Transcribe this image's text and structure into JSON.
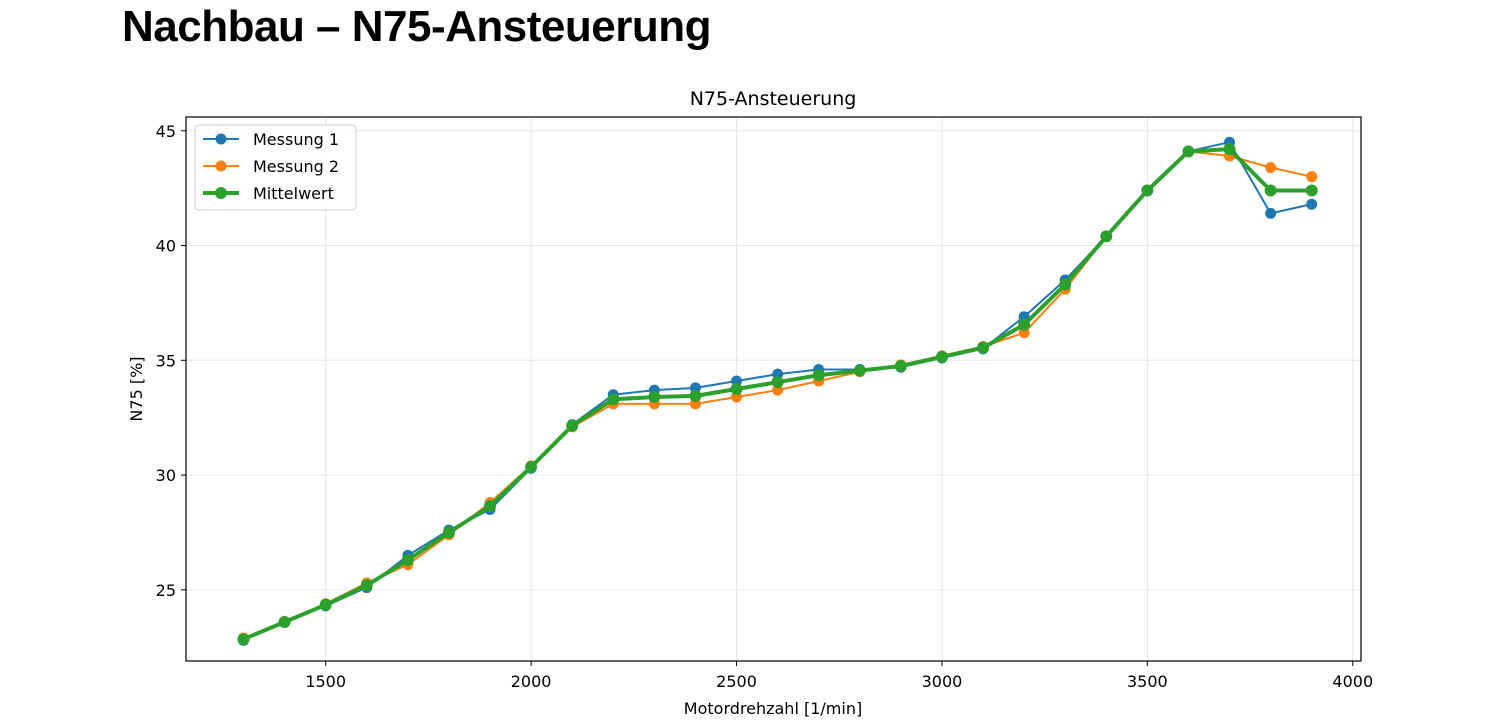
{
  "page": {
    "title": "Nachbau – N75-Ansteuerung"
  },
  "chart_data": {
    "type": "line",
    "title": "N75-Ansteuerung",
    "xlabel": "Motordrehzahl [1/min]",
    "ylabel": "N75 [%]",
    "xlim": [
      1160,
      4020
    ],
    "ylim": [
      21.9,
      45.6
    ],
    "xticks": [
      1500,
      2000,
      2500,
      3000,
      3500,
      4000
    ],
    "yticks": [
      25,
      30,
      35,
      40,
      45
    ],
    "grid": true,
    "legend_position": "upper left",
    "x": [
      1300,
      1400,
      1500,
      1600,
      1700,
      1800,
      1900,
      2000,
      2100,
      2200,
      2300,
      2400,
      2500,
      2600,
      2700,
      2800,
      2900,
      3000,
      3100,
      3200,
      3300,
      3400,
      3500,
      3600,
      3700,
      3800,
      3900
    ],
    "series": [
      {
        "name": "Messung 1",
        "color": "#1f77b4",
        "linewidth": 2,
        "marker_radius": 5.5,
        "values": [
          22.8,
          23.6,
          24.3,
          25.1,
          26.5,
          27.6,
          28.5,
          30.3,
          32.2,
          33.5,
          33.7,
          33.8,
          34.1,
          34.4,
          34.6,
          34.6,
          34.7,
          35.1,
          35.5,
          36.9,
          38.5,
          40.4,
          42.4,
          44.1,
          44.5,
          41.4,
          41.8
        ]
      },
      {
        "name": "Messung 2",
        "color": "#ff7f0e",
        "linewidth": 2,
        "marker_radius": 5.5,
        "values": [
          22.9,
          23.6,
          24.4,
          25.3,
          26.1,
          27.4,
          28.8,
          30.4,
          32.1,
          33.1,
          33.1,
          33.1,
          33.4,
          33.7,
          34.1,
          34.5,
          34.8,
          35.2,
          35.6,
          36.2,
          38.1,
          40.4,
          42.4,
          44.1,
          43.9,
          43.4,
          43.0
        ]
      },
      {
        "name": "Mittelwert",
        "color": "#2ca02c",
        "linewidth": 4,
        "marker_radius": 6,
        "values": [
          22.85,
          23.6,
          24.35,
          25.2,
          26.3,
          27.5,
          28.65,
          30.35,
          32.15,
          33.3,
          33.4,
          33.45,
          33.75,
          34.05,
          34.35,
          34.55,
          34.75,
          35.15,
          35.55,
          36.55,
          38.3,
          40.4,
          42.4,
          44.1,
          44.2,
          42.4,
          42.4
        ]
      }
    ]
  }
}
